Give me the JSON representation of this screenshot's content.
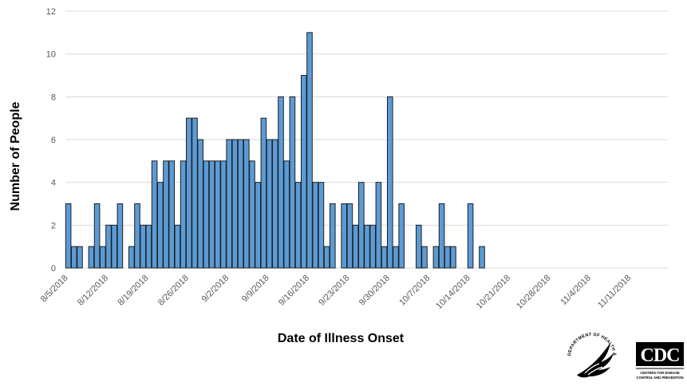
{
  "chart_data": {
    "type": "bar",
    "title": "",
    "xlabel": "Date of Illness Onset",
    "ylabel": "Number of People",
    "ylim": [
      0,
      12
    ],
    "yticks": [
      0,
      2,
      4,
      6,
      8,
      10,
      12
    ],
    "grid": true,
    "legend": "none",
    "bar_color": "#5b9bd5",
    "x_start": "8/5/2018",
    "x_end": "11/17/2018",
    "xtick_labels": [
      "8/5/2018",
      "8/12/2018",
      "8/19/2018",
      "8/26/2018",
      "9/2/2018",
      "9/9/2018",
      "9/16/2018",
      "9/23/2018",
      "9/30/2018",
      "10/7/2018",
      "10/14/2018",
      "10/21/2018",
      "10/28/2018",
      "11/4/2018",
      "11/11/2018"
    ],
    "categories": [
      "8/5/2018",
      "8/6/2018",
      "8/7/2018",
      "8/8/2018",
      "8/9/2018",
      "8/10/2018",
      "8/11/2018",
      "8/12/2018",
      "8/13/2018",
      "8/14/2018",
      "8/15/2018",
      "8/16/2018",
      "8/17/2018",
      "8/18/2018",
      "8/19/2018",
      "8/20/2018",
      "8/21/2018",
      "8/22/2018",
      "8/23/2018",
      "8/24/2018",
      "8/25/2018",
      "8/26/2018",
      "8/27/2018",
      "8/28/2018",
      "8/29/2018",
      "8/30/2018",
      "8/31/2018",
      "9/1/2018",
      "9/2/2018",
      "9/3/2018",
      "9/4/2018",
      "9/5/2018",
      "9/6/2018",
      "9/7/2018",
      "9/8/2018",
      "9/9/2018",
      "9/10/2018",
      "9/11/2018",
      "9/12/2018",
      "9/13/2018",
      "9/14/2018",
      "9/15/2018",
      "9/16/2018",
      "9/17/2018",
      "9/18/2018",
      "9/19/2018",
      "9/20/2018",
      "9/21/2018",
      "9/22/2018",
      "9/23/2018",
      "9/24/2018",
      "9/25/2018",
      "9/26/2018",
      "9/27/2018",
      "9/28/2018",
      "9/29/2018",
      "9/30/2018",
      "10/1/2018",
      "10/2/2018",
      "10/3/2018",
      "10/4/2018",
      "10/5/2018",
      "10/6/2018",
      "10/7/2018",
      "10/8/2018",
      "10/9/2018",
      "10/10/2018",
      "10/11/2018",
      "10/12/2018",
      "10/13/2018",
      "10/14/2018",
      "10/15/2018",
      "10/16/2018",
      "10/17/2018",
      "10/18/2018",
      "10/19/2018",
      "10/20/2018",
      "10/21/2018",
      "10/22/2018",
      "10/23/2018",
      "10/24/2018",
      "10/25/2018",
      "10/26/2018",
      "10/27/2018",
      "10/28/2018",
      "10/29/2018",
      "10/30/2018",
      "10/31/2018",
      "11/1/2018",
      "11/2/2018",
      "11/3/2018",
      "11/4/2018",
      "11/5/2018",
      "11/6/2018",
      "11/7/2018",
      "11/8/2018",
      "11/9/2018",
      "11/10/2018",
      "11/11/2018",
      "11/12/2018",
      "11/13/2018",
      "11/14/2018",
      "11/15/2018",
      "11/16/2018",
      "11/17/2018"
    ],
    "values": [
      3,
      1,
      1,
      0,
      1,
      3,
      1,
      2,
      2,
      3,
      0,
      1,
      3,
      2,
      2,
      5,
      4,
      5,
      5,
      2,
      5,
      7,
      7,
      6,
      5,
      5,
      5,
      5,
      6,
      6,
      6,
      6,
      5,
      4,
      7,
      6,
      6,
      8,
      5,
      8,
      4,
      9,
      11,
      4,
      4,
      1,
      3,
      0,
      3,
      3,
      2,
      4,
      2,
      2,
      4,
      1,
      8,
      1,
      3,
      0,
      0,
      2,
      1,
      0,
      1,
      3,
      1,
      1,
      0,
      0,
      3,
      0,
      1,
      0,
      0,
      0,
      0,
      0,
      0,
      0,
      0,
      0,
      0,
      0,
      0,
      0,
      0,
      0,
      0,
      0,
      0,
      0,
      0,
      0,
      0,
      0,
      0,
      0,
      0,
      0,
      0,
      0,
      0,
      0,
      0
    ]
  },
  "logos": {
    "hhs": "DEPARTMENT OF HEALTH & HUMAN SERVICES USA",
    "cdc": "CDC",
    "cdc_sub": "CENTERS FOR DISEASE CONTROL AND PREVENTION"
  }
}
